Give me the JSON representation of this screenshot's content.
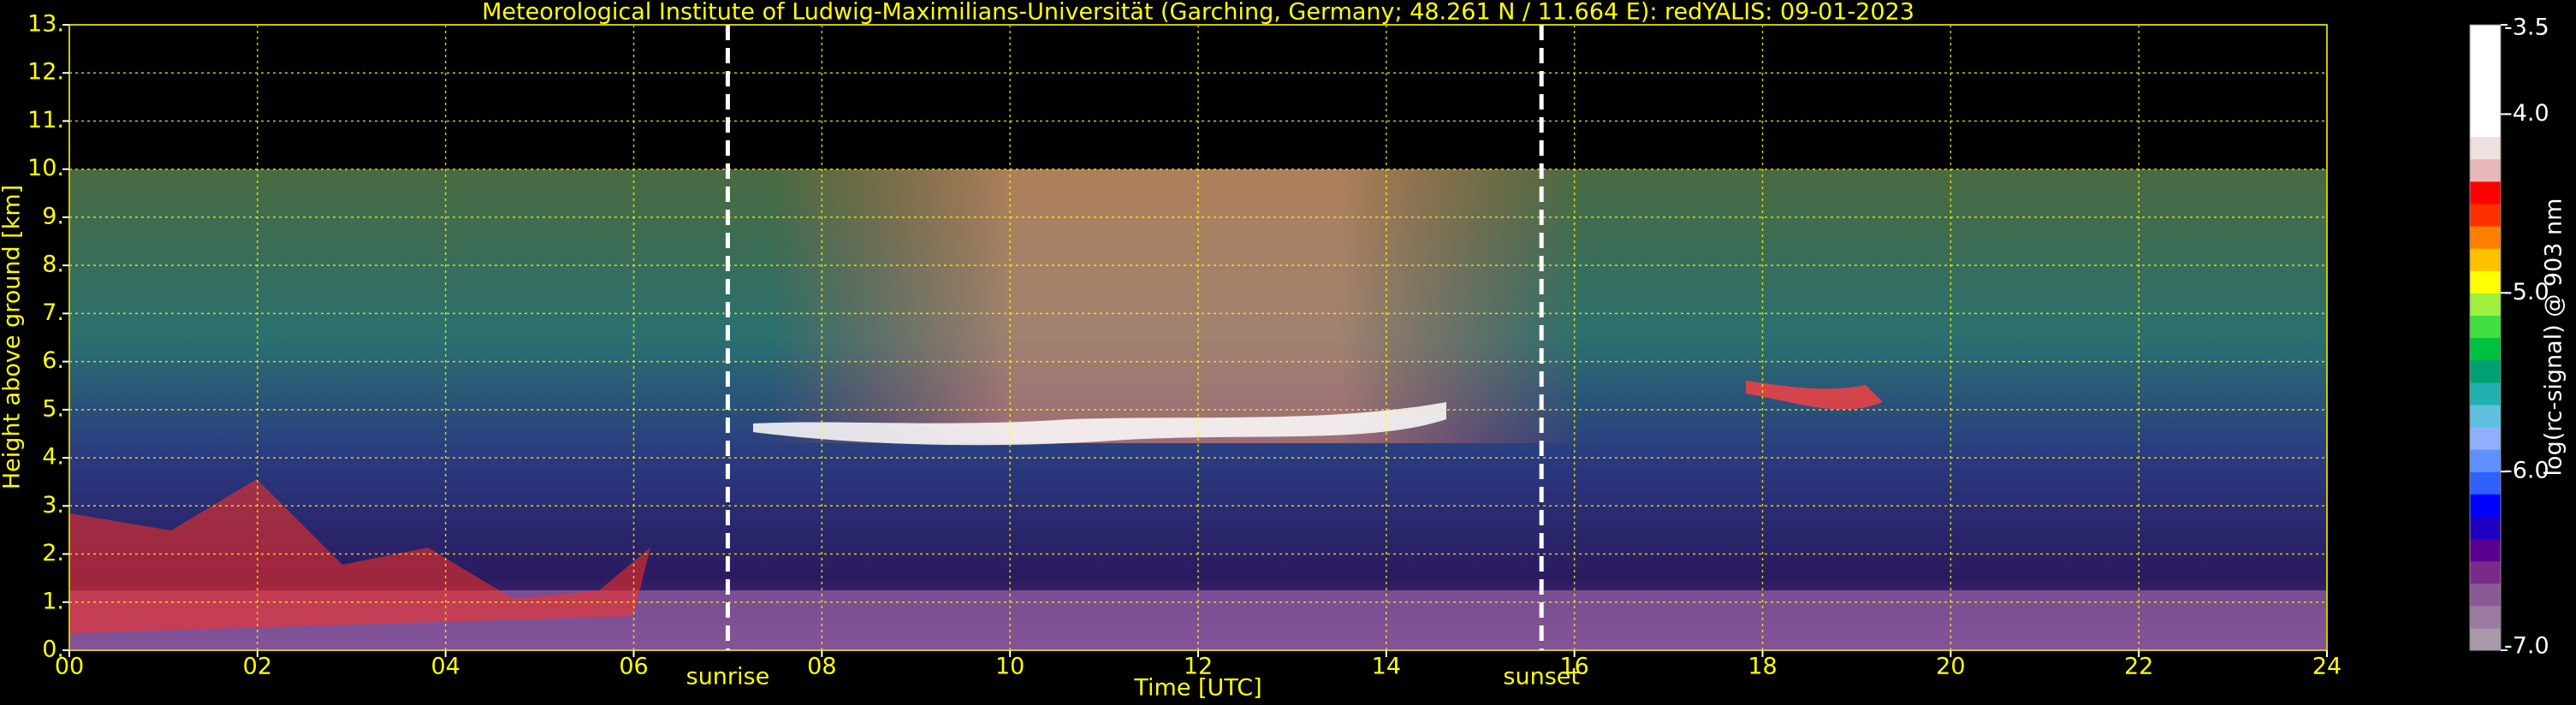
{
  "chart_data": {
    "type": "heatmap",
    "title": "Meteorological Institute of Ludwig-Maximilians-Universität (Garching, Germany; 48.261 N / 11.664 E):    redYALIS: 09-01-2023",
    "x_label": "Time [UTC]",
    "y_label": "Height above ground [km]",
    "xlim": [
      0,
      24
    ],
    "xticks": [
      {
        "value": 0,
        "label": "00"
      },
      {
        "value": 2,
        "label": "02"
      },
      {
        "value": 4,
        "label": "04"
      },
      {
        "value": 6,
        "label": "06"
      },
      {
        "value": 8,
        "label": "08"
      },
      10,
      12,
      14,
      16,
      18,
      20,
      22,
      24
    ],
    "ylim": [
      0,
      13
    ],
    "yticks": [
      {
        "value": 0,
        "label": "0."
      },
      {
        "value": 1,
        "label": "1."
      },
      {
        "value": 2,
        "label": "2."
      },
      {
        "value": 3,
        "label": "3."
      },
      {
        "value": 4,
        "label": "4."
      },
      {
        "value": 5,
        "label": "5."
      },
      {
        "value": 6,
        "label": "6."
      },
      {
        "value": 7,
        "label": "7."
      },
      {
        "value": 8,
        "label": "8."
      },
      {
        "value": 9,
        "label": "9."
      },
      {
        "value": 10,
        "label": "10."
      },
      {
        "value": 11,
        "label": "11."
      },
      {
        "value": 12,
        "label": "12."
      },
      {
        "value": 13,
        "label": "13."
      }
    ],
    "grid": true,
    "grid_color": "#ffff00",
    "annotations": [
      {
        "text": "sunrise",
        "x": 7.0
      },
      {
        "text": "sunset",
        "x": 15.65
      }
    ],
    "colorbar": {
      "label": "log(rc-signal) @ 903 nm",
      "zlim": [
        -7.0,
        -3.5
      ],
      "zticks": [
        -3.5,
        {
          "value": -4.0,
          "label": "-4.0"
        },
        {
          "value": -5.0,
          "label": "-5.0"
        },
        {
          "value": -6.0,
          "label": "-6.0"
        },
        {
          "value": -7.0,
          "label": "-7.0"
        }
      ],
      "colors": [
        "#a89aa8",
        "#9a7a9e",
        "#8a5a94",
        "#7a2a8a",
        "#5a0090",
        "#2000c0",
        "#0000ff",
        "#3060ff",
        "#6090ff",
        "#90b0ff",
        "#60c0e0",
        "#20b0b0",
        "#00a070",
        "#00c040",
        "#40e040",
        "#a0f040",
        "#ffff00",
        "#ffc000",
        "#ff8000",
        "#ff3000",
        "#ff0000",
        "#e8b8b8",
        "#f0e0e0",
        "#ffffff",
        "#ffffff",
        "#ffffff",
        "#ffffff",
        "#ffffff"
      ]
    }
  }
}
